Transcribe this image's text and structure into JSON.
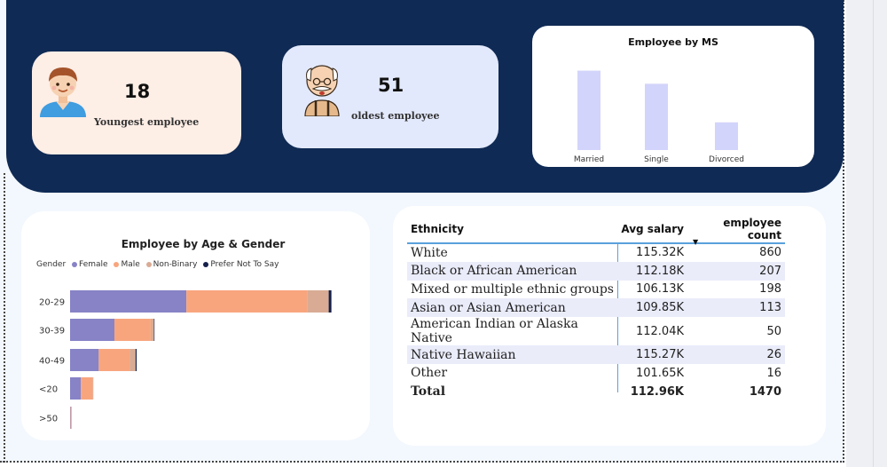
{
  "kpis": {
    "youngest": {
      "value": "18",
      "label": "Youngest employee",
      "icon": "young-person-icon"
    },
    "oldest": {
      "value": "51",
      "label": "oldest employee",
      "icon": "old-man-icon"
    }
  },
  "colors": {
    "banner": "#0f2a54",
    "female": "#8783c6",
    "male": "#f8a57e",
    "non_binary": "#d9ab94",
    "prefer_not": "#14204a",
    "ms_bar": "#d3d4fb",
    "table_accent": "#5aa0dc"
  },
  "ms_chart": {
    "title": "Employee by MS",
    "chart_data": {
      "type": "bar",
      "categories": [
        "Married",
        "Single",
        "Divorced"
      ],
      "values": [
        673,
        562,
        235
      ],
      "ylim": [
        0,
        700
      ],
      "grid": false
    }
  },
  "age_chart": {
    "title": "Employee by Age & Gender",
    "legend_label": "Gender",
    "legend": [
      "Female",
      "Male",
      "Non-Binary",
      "Prefer Not To Say"
    ],
    "chart_data": {
      "type": "bar",
      "orientation": "horizontal",
      "stacked": true,
      "categories": [
        "20-29",
        "30-39",
        "40-49",
        "<20",
        ">50"
      ],
      "series": [
        {
          "name": "Female",
          "values": [
            215,
            82,
            53,
            20,
            1
          ]
        },
        {
          "name": "Male",
          "values": [
            223,
            67,
            57,
            22,
            2
          ]
        },
        {
          "name": "Non-Binary",
          "values": [
            40,
            6,
            11,
            1,
            0
          ]
        },
        {
          "name": "Prefer Not To Say",
          "values": [
            5,
            1,
            2,
            0,
            0
          ]
        }
      ],
      "xlim": [
        0,
        520
      ],
      "legend_position": "top-left"
    }
  },
  "ethnicity_table": {
    "headers": [
      "Ethnicity",
      "Avg salary",
      "employee count"
    ],
    "sorted_by": "employee count",
    "rows": [
      [
        "White",
        "115.32K",
        "860"
      ],
      [
        "Black or African American",
        "112.18K",
        "207"
      ],
      [
        "Mixed or multiple ethnic groups",
        "106.13K",
        "198"
      ],
      [
        "Asian or Asian American",
        "109.85K",
        "113"
      ],
      [
        "American Indian or Alaska Native",
        "112.04K",
        "50"
      ],
      [
        "Native Hawaiian",
        "115.27K",
        "26"
      ],
      [
        "Other",
        "101.65K",
        "16"
      ]
    ],
    "total": [
      "Total",
      "112.96K",
      "1470"
    ]
  }
}
